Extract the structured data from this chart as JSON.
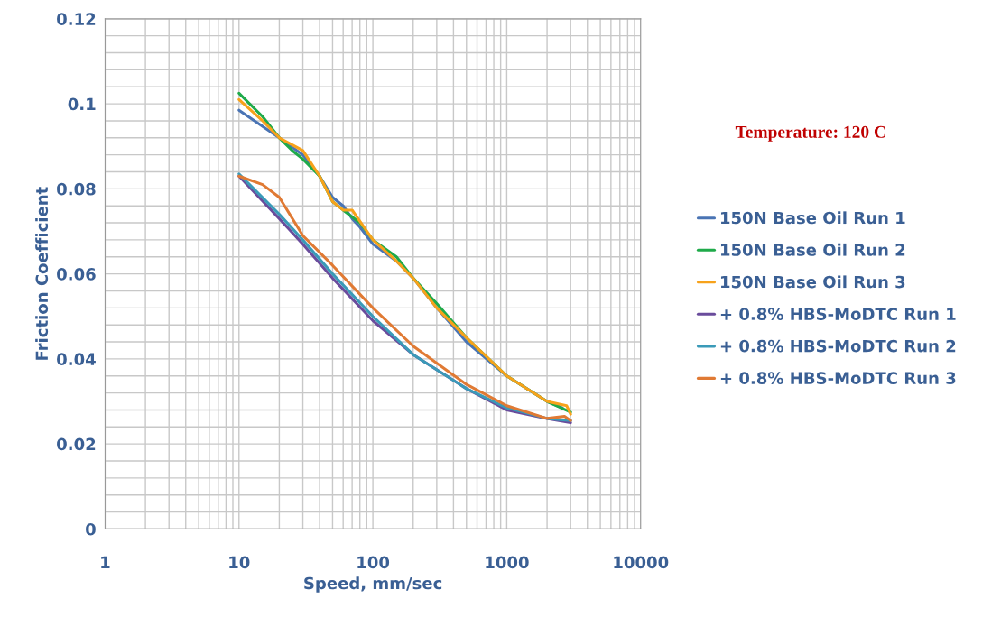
{
  "chart_data": {
    "type": "line",
    "xlabel": "Speed, mm/sec",
    "ylabel": "Friction Coefficient",
    "log": "x",
    "xlim": [
      1,
      10000
    ],
    "xticks": [
      1,
      10,
      100,
      1000,
      10000
    ],
    "ylim": [
      0,
      0.12
    ],
    "yticks": [
      0,
      0.02,
      0.04,
      0.06,
      0.08,
      {
        "value": 0.1,
        "label": "0.1"
      },
      0.12
    ],
    "grid": true,
    "legend": "right",
    "line_style": "solid",
    "marker": "none",
    "annotations": [
      "Temperature: 120 C"
    ],
    "series": [
      {
        "name": "150N Base Oil Run 1",
        "color": "#4a74b4",
        "x": [
          10,
          20,
          30,
          40,
          50,
          60,
          70,
          80,
          100,
          150,
          200,
          300,
          500,
          1000,
          2000,
          2600
        ],
        "values": [
          0.0985,
          0.092,
          0.088,
          0.083,
          0.078,
          0.076,
          0.073,
          0.071,
          0.067,
          0.063,
          0.059,
          0.052,
          0.044,
          0.036,
          0.03,
          0.0285
        ]
      },
      {
        "name": "150N Base Oil Run 2",
        "color": "#1faa4a",
        "x": [
          10,
          15,
          20,
          25,
          30,
          40,
          50,
          60,
          80,
          100,
          150,
          200,
          300,
          500,
          1000,
          2000,
          3000
        ],
        "values": [
          0.1025,
          0.097,
          0.092,
          0.089,
          0.087,
          0.083,
          0.077,
          0.075,
          0.072,
          0.068,
          0.064,
          0.059,
          0.053,
          0.045,
          0.036,
          0.03,
          0.0275
        ]
      },
      {
        "name": "150N Base Oil Run 3",
        "color": "#f7a21b",
        "x": [
          10,
          15,
          20,
          30,
          40,
          50,
          60,
          70,
          100,
          150,
          200,
          300,
          500,
          1000,
          2000,
          2800,
          3000
        ],
        "values": [
          0.101,
          0.096,
          0.092,
          0.089,
          0.083,
          0.077,
          0.075,
          0.075,
          0.068,
          0.063,
          0.059,
          0.052,
          0.045,
          0.036,
          0.03,
          0.029,
          0.027
        ]
      },
      {
        "name": "+ 0.8% HBS-MoDTC Run 1",
        "color": "#6a4c9c",
        "x": [
          10,
          20,
          30,
          50,
          100,
          200,
          500,
          1000,
          2000,
          3000
        ],
        "values": [
          0.083,
          0.073,
          0.067,
          0.059,
          0.049,
          0.041,
          0.033,
          0.028,
          0.026,
          0.025
        ]
      },
      {
        "name": "+ 0.8% HBS-MoDTC Run 2",
        "color": "#3a9ab8",
        "x": [
          10,
          20,
          30,
          50,
          100,
          200,
          500,
          1000,
          2000,
          3000
        ],
        "values": [
          0.0835,
          0.074,
          0.068,
          0.06,
          0.05,
          0.041,
          0.033,
          0.0285,
          0.026,
          0.0255
        ]
      },
      {
        "name": "+ 0.8% HBS-MoDTC Run 3",
        "color": "#e07a34",
        "x": [
          10,
          15,
          20,
          30,
          50,
          100,
          200,
          500,
          1000,
          2000,
          2700,
          3000
        ],
        "values": [
          0.083,
          0.081,
          0.078,
          0.069,
          0.062,
          0.052,
          0.043,
          0.034,
          0.029,
          0.026,
          0.0265,
          0.0255
        ]
      }
    ]
  }
}
